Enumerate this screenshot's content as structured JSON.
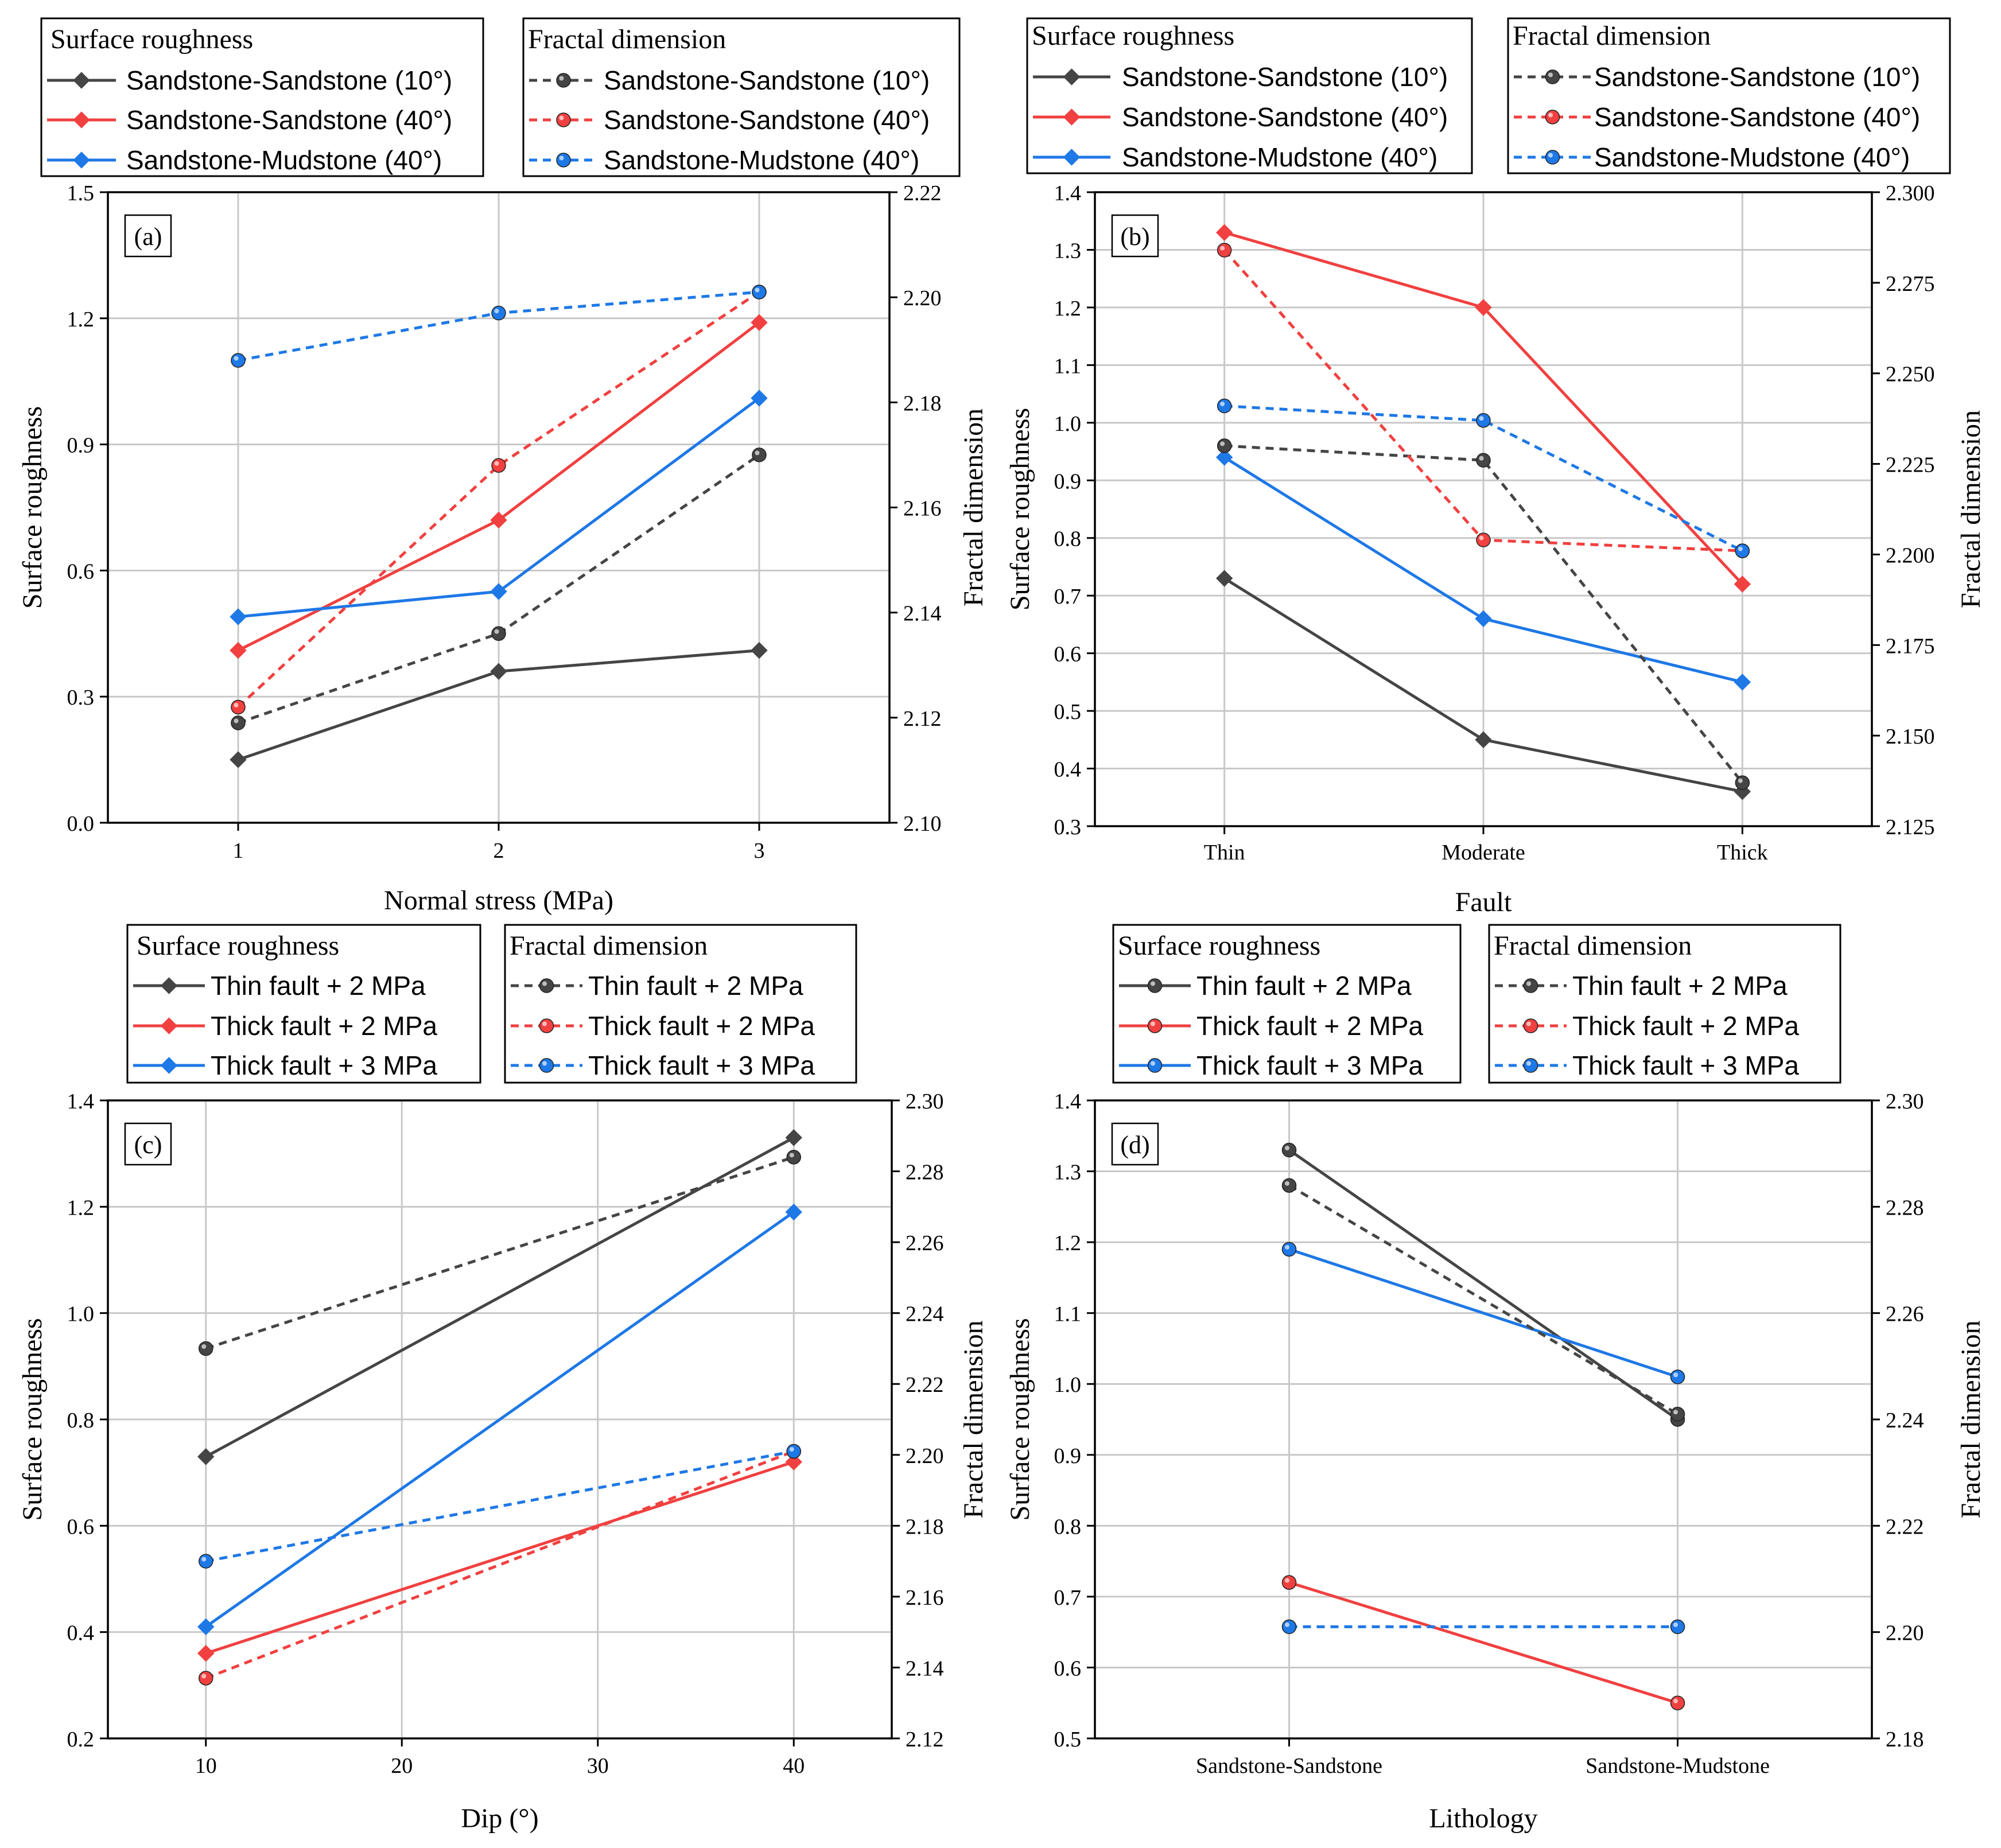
{
  "figure": {
    "colors": {
      "black": "#454545",
      "red": "#f04040",
      "blue": "#1e78e6",
      "grid": "#c8c8c8"
    },
    "marker_legend": {
      "diamond": "diamond-marker-icon",
      "circle": "circle-marker-icon"
    }
  },
  "chart_data": [
    {
      "panel": "(a)",
      "type": "line",
      "xlabel": "Normal stress (MPa)",
      "ylabel": "Surface roughness",
      "y2label": "Fractal dimension",
      "x_type": "numeric",
      "x": [
        1,
        2,
        3
      ],
      "x_ticks": [
        1,
        2,
        3
      ],
      "x_tick_labels": [
        "1",
        "2",
        "3"
      ],
      "xlim": [
        0.5,
        3.5
      ],
      "ylim": [
        0,
        1.5
      ],
      "y_ticks": [
        0.0,
        0.3,
        0.6,
        0.9,
        1.2,
        1.5
      ],
      "y_tick_labels": [
        "0.0",
        "0.3",
        "0.6",
        "0.9",
        "1.2",
        "1.5"
      ],
      "y2lim": [
        2.1,
        2.22
      ],
      "y2_ticks": [
        2.1,
        2.12,
        2.14,
        2.16,
        2.18,
        2.2,
        2.22
      ],
      "y2_tick_labels": [
        "2.10",
        "2.12",
        "2.14",
        "2.16",
        "2.18",
        "2.20",
        "2.22"
      ],
      "legend_titles": [
        "Surface roughness",
        "Fractal dimension"
      ],
      "series": [
        {
          "name": "Sandstone-Sandstone (10°)",
          "group": "Surface roughness",
          "axis": "left",
          "color": "#454545",
          "dash": "solid",
          "marker": "diamond",
          "values": [
            0.15,
            0.36,
            0.41
          ]
        },
        {
          "name": "Sandstone-Sandstone (40°)",
          "group": "Surface roughness",
          "axis": "left",
          "color": "#f04040",
          "dash": "solid",
          "marker": "diamond",
          "values": [
            0.41,
            0.72,
            1.19
          ]
        },
        {
          "name": "Sandstone-Mudstone (40°)",
          "group": "Surface roughness",
          "axis": "left",
          "color": "#1e78e6",
          "dash": "solid",
          "marker": "diamond",
          "values": [
            0.49,
            0.55,
            1.01
          ]
        },
        {
          "name": "Sandstone-Sandstone (10°)",
          "group": "Fractal dimension",
          "axis": "right",
          "color": "#454545",
          "dash": "dashed",
          "marker": "circle",
          "values": [
            2.119,
            2.136,
            2.17
          ]
        },
        {
          "name": "Sandstone-Sandstone (40°)",
          "group": "Fractal dimension",
          "axis": "right",
          "color": "#f04040",
          "dash": "dashed",
          "marker": "circle",
          "values": [
            2.122,
            2.168,
            2.201
          ]
        },
        {
          "name": "Sandstone-Mudstone (40°)",
          "group": "Fractal dimension",
          "axis": "right",
          "color": "#1e78e6",
          "dash": "dashed",
          "marker": "circle",
          "values": [
            2.188,
            2.197,
            2.201
          ]
        }
      ]
    },
    {
      "panel": "(b)",
      "type": "line",
      "xlabel": "Fault",
      "ylabel": "Surface roughness",
      "y2label": "Fractal dimension",
      "x_type": "categorical",
      "categories": [
        "Thin",
        "Moderate",
        "Thick"
      ],
      "ylim": [
        0.3,
        1.4
      ],
      "y_ticks": [
        0.3,
        0.4,
        0.5,
        0.6,
        0.7,
        0.8,
        0.9,
        1.0,
        1.1,
        1.2,
        1.3,
        1.4
      ],
      "y_tick_labels": [
        "0.3",
        "0.4",
        "0.5",
        "0.6",
        "0.7",
        "0.8",
        "0.9",
        "1.0",
        "1.1",
        "1.2",
        "1.3",
        "1.4"
      ],
      "y2lim": [
        2.125,
        2.3
      ],
      "y2_ticks": [
        2.125,
        2.15,
        2.175,
        2.2,
        2.225,
        2.25,
        2.275,
        2.3
      ],
      "y2_tick_labels": [
        "2.125",
        "2.150",
        "2.175",
        "2.200",
        "2.225",
        "2.250",
        "2.275",
        "2.300"
      ],
      "legend_titles": [
        "Surface roughness",
        "Fractal dimension"
      ],
      "series": [
        {
          "name": "Sandstone-Sandstone (10°)",
          "group": "Surface roughness",
          "axis": "left",
          "color": "#454545",
          "dash": "solid",
          "marker": "diamond",
          "values": [
            0.73,
            0.45,
            0.36
          ]
        },
        {
          "name": "Sandstone-Sandstone (40°)",
          "group": "Surface roughness",
          "axis": "left",
          "color": "#f04040",
          "dash": "solid",
          "marker": "diamond",
          "values": [
            1.33,
            1.2,
            0.72
          ]
        },
        {
          "name": "Sandstone-Mudstone (40°)",
          "group": "Surface roughness",
          "axis": "left",
          "color": "#1e78e6",
          "dash": "solid",
          "marker": "diamond",
          "values": [
            0.94,
            0.66,
            0.55
          ]
        },
        {
          "name": "Sandstone-Sandstone (10°)",
          "group": "Fractal dimension",
          "axis": "right",
          "color": "#454545",
          "dash": "dashed",
          "marker": "circle",
          "values": [
            2.23,
            2.226,
            2.137
          ]
        },
        {
          "name": "Sandstone-Sandstone (40°)",
          "group": "Fractal dimension",
          "axis": "right",
          "color": "#f04040",
          "dash": "dashed",
          "marker": "circle",
          "values": [
            2.284,
            2.204,
            2.201
          ]
        },
        {
          "name": "Sandstone-Mudstone (40°)",
          "group": "Fractal dimension",
          "axis": "right",
          "color": "#1e78e6",
          "dash": "dashed",
          "marker": "circle",
          "values": [
            2.241,
            2.237,
            2.201
          ]
        }
      ]
    },
    {
      "panel": "(c)",
      "type": "line",
      "xlabel": "Dip (°)",
      "ylabel": "Surface roughness",
      "y2label": "Fractal dimension",
      "x_type": "numeric",
      "x": [
        10,
        40
      ],
      "x_ticks": [
        10,
        20,
        30,
        40
      ],
      "x_tick_labels": [
        "10",
        "20",
        "30",
        "40"
      ],
      "xlim": [
        5,
        45
      ],
      "ylim": [
        0.2,
        1.4
      ],
      "y_ticks": [
        0.2,
        0.4,
        0.6,
        0.8,
        1.0,
        1.2,
        1.4
      ],
      "y_tick_labels": [
        "0.2",
        "0.4",
        "0.6",
        "0.8",
        "1.0",
        "1.2",
        "1.4"
      ],
      "y2lim": [
        2.12,
        2.3
      ],
      "y2_ticks": [
        2.12,
        2.14,
        2.16,
        2.18,
        2.2,
        2.22,
        2.24,
        2.26,
        2.28,
        2.3
      ],
      "y2_tick_labels": [
        "2.12",
        "2.14",
        "2.16",
        "2.18",
        "2.20",
        "2.22",
        "2.24",
        "2.26",
        "2.28",
        "2.30"
      ],
      "legend_titles": [
        "Surface roughness",
        "Fractal dimension"
      ],
      "series": [
        {
          "name": "Thin fault + 2 MPa",
          "group": "Surface roughness",
          "axis": "left",
          "color": "#454545",
          "dash": "solid",
          "marker": "diamond",
          "values": [
            0.73,
            1.33
          ]
        },
        {
          "name": "Thick fault + 2 MPa",
          "group": "Surface roughness",
          "axis": "left",
          "color": "#f04040",
          "dash": "solid",
          "marker": "diamond",
          "values": [
            0.36,
            0.72
          ]
        },
        {
          "name": "Thick fault + 3 MPa",
          "group": "Surface roughness",
          "axis": "left",
          "color": "#1e78e6",
          "dash": "solid",
          "marker": "diamond",
          "values": [
            0.41,
            1.19
          ]
        },
        {
          "name": "Thin fault + 2 MPa",
          "group": "Fractal dimension",
          "axis": "right",
          "color": "#454545",
          "dash": "dashed",
          "marker": "circle",
          "values": [
            2.23,
            2.284
          ]
        },
        {
          "name": "Thick fault + 2 MPa",
          "group": "Fractal dimension",
          "axis": "right",
          "color": "#f04040",
          "dash": "dashed",
          "marker": "circle",
          "values": [
            2.137,
            2.201
          ]
        },
        {
          "name": "Thick fault + 3 MPa",
          "group": "Fractal dimension",
          "axis": "right",
          "color": "#1e78e6",
          "dash": "dashed",
          "marker": "circle",
          "values": [
            2.17,
            2.201
          ]
        }
      ]
    },
    {
      "panel": "(d)",
      "type": "line",
      "xlabel": "Lithology",
      "ylabel": "Surface roughness",
      "y2label": "Fractal dimension",
      "x_type": "categorical",
      "categories": [
        "Sandstone-Sandstone",
        "Sandstone-Mudstone"
      ],
      "ylim": [
        0.5,
        1.4
      ],
      "y_ticks": [
        0.5,
        0.6,
        0.7,
        0.8,
        0.9,
        1.0,
        1.1,
        1.2,
        1.3,
        1.4
      ],
      "y_tick_labels": [
        "0.5",
        "0.6",
        "0.7",
        "0.8",
        "0.9",
        "1.0",
        "1.1",
        "1.2",
        "1.3",
        "1.4"
      ],
      "y2lim": [
        2.18,
        2.3
      ],
      "y2_ticks": [
        2.18,
        2.2,
        2.22,
        2.24,
        2.26,
        2.28,
        2.3
      ],
      "y2_tick_labels": [
        "2.18",
        "2.20",
        "2.22",
        "2.24",
        "2.26",
        "2.28",
        "2.30"
      ],
      "legend_titles": [
        "Surface roughness",
        "Fractal dimension"
      ],
      "series": [
        {
          "name": "Thin fault + 2 MPa",
          "group": "Surface roughness",
          "axis": "left",
          "color": "#454545",
          "dash": "solid",
          "marker": "circle",
          "values": [
            1.33,
            0.95
          ]
        },
        {
          "name": "Thick fault + 2 MPa",
          "group": "Surface roughness",
          "axis": "left",
          "color": "#f04040",
          "dash": "solid",
          "marker": "circle",
          "values": [
            0.72,
            0.55
          ]
        },
        {
          "name": "Thick fault + 3 MPa",
          "group": "Surface roughness",
          "axis": "left",
          "color": "#1e78e6",
          "dash": "solid",
          "marker": "circle",
          "values": [
            1.19,
            1.01
          ]
        },
        {
          "name": "Thin fault + 2 MPa",
          "group": "Fractal dimension",
          "axis": "right",
          "color": "#454545",
          "dash": "dashed",
          "marker": "circle",
          "values": [
            2.284,
            2.241
          ]
        },
        {
          "name": "Thick fault + 2 MPa",
          "group": "Fractal dimension",
          "axis": "right",
          "color": "#f04040",
          "dash": "dashed",
          "marker": "circle",
          "values": [
            null,
            null
          ]
        },
        {
          "name": "Thick fault + 3 MPa",
          "group": "Fractal dimension",
          "axis": "right",
          "color": "#1e78e6",
          "dash": "dashed",
          "marker": "circle",
          "values": [
            2.201,
            2.201
          ]
        }
      ]
    }
  ]
}
